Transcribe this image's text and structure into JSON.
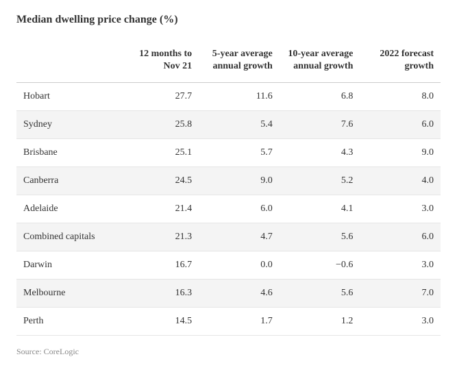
{
  "title": "Median dwelling price change (%)",
  "source": "Source: CoreLogic",
  "table": {
    "columns": [
      "",
      "12 months to Nov 21",
      "5-year average annual growth",
      "10-year average annual growth",
      "2022 forecast growth"
    ],
    "rows": [
      {
        "city": "Hobart",
        "c1": "27.7",
        "c2": "11.6",
        "c3": "6.8",
        "c4": "8.0"
      },
      {
        "city": "Sydney",
        "c1": "25.8",
        "c2": "5.4",
        "c3": "7.6",
        "c4": "6.0"
      },
      {
        "city": "Brisbane",
        "c1": "25.1",
        "c2": "5.7",
        "c3": "4.3",
        "c4": "9.0"
      },
      {
        "city": "Canberra",
        "c1": "24.5",
        "c2": "9.0",
        "c3": "5.2",
        "c4": "4.0"
      },
      {
        "city": "Adelaide",
        "c1": "21.4",
        "c2": "6.0",
        "c3": "4.1",
        "c4": "3.0"
      },
      {
        "city": "Combined capitals",
        "c1": "21.3",
        "c2": "4.7",
        "c3": "5.6",
        "c4": "6.0"
      },
      {
        "city": "Darwin",
        "c1": "16.7",
        "c2": "0.0",
        "c3": "−0.6",
        "c4": "3.0"
      },
      {
        "city": "Melbourne",
        "c1": "16.3",
        "c2": "4.6",
        "c3": "5.6",
        "c4": "7.0"
      },
      {
        "city": "Perth",
        "c1": "14.5",
        "c2": "1.7",
        "c3": "1.2",
        "c4": "3.0"
      }
    ],
    "style": {
      "type": "table",
      "background_color": "#ffffff",
      "alt_row_color": "#f4f4f4",
      "header_border_color": "#cccccc",
      "row_border_color": "#e5e5e5",
      "text_color": "#333333",
      "source_color": "#888888",
      "title_fontsize": 16,
      "body_fontsize": 14,
      "source_fontsize": 12,
      "column_widths_pct": [
        24,
        19,
        19,
        19,
        19
      ],
      "column_align": [
        "left",
        "right",
        "right",
        "right",
        "right"
      ],
      "font_family": "Georgia, serif"
    }
  }
}
